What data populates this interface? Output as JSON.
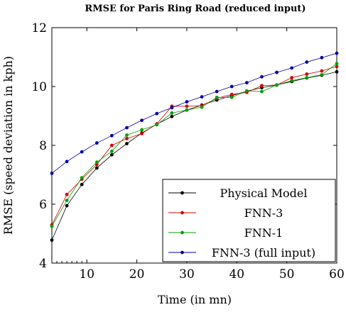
{
  "chart_data": {
    "type": "line",
    "title": "RMSE for Paris Ring Road (reduced input)",
    "xlabel": "Time (in mn)",
    "ylabel": "RMSE (speed deviation in kph)",
    "xlim": [
      3,
      60
    ],
    "ylim": [
      4,
      12
    ],
    "xticks": [
      10,
      20,
      30,
      40,
      50,
      60
    ],
    "yticks": [
      4,
      6,
      8,
      10,
      12
    ],
    "grid": false,
    "legend_position": "bottom-right",
    "x": [
      3,
      6,
      9,
      12,
      15,
      18,
      21,
      24,
      27,
      30,
      33,
      36,
      39,
      42,
      45,
      48,
      51,
      54,
      57,
      60
    ],
    "series": [
      {
        "name": "Physical Model",
        "color": "#000000",
        "values": [
          4.78,
          5.95,
          6.67,
          7.23,
          7.68,
          8.06,
          8.42,
          8.72,
          8.98,
          9.2,
          9.37,
          9.54,
          9.69,
          9.84,
          9.96,
          10.05,
          10.17,
          10.29,
          10.38,
          10.5
        ]
      },
      {
        "name": "FNN-3",
        "color": "#d40000",
        "values": [
          5.3,
          6.33,
          6.85,
          7.35,
          8.0,
          8.23,
          8.4,
          8.73,
          9.33,
          9.33,
          9.35,
          9.6,
          9.73,
          9.8,
          10.03,
          10.05,
          10.3,
          10.42,
          10.53,
          10.68
        ]
      },
      {
        "name": "FNN-1",
        "color": "#00a000",
        "values": [
          5.25,
          6.13,
          6.9,
          7.43,
          7.8,
          8.35,
          8.53,
          8.7,
          9.1,
          9.2,
          9.3,
          9.63,
          9.63,
          9.85,
          9.83,
          10.05,
          10.2,
          10.3,
          10.4,
          10.78
        ]
      },
      {
        "name": "FNN-3 (full input)",
        "color": "#0000a8",
        "values": [
          7.05,
          7.45,
          7.78,
          8.08,
          8.33,
          8.6,
          8.85,
          9.08,
          9.28,
          9.48,
          9.65,
          9.83,
          10.0,
          10.13,
          10.33,
          10.48,
          10.63,
          10.83,
          10.98,
          11.13
        ]
      }
    ]
  }
}
